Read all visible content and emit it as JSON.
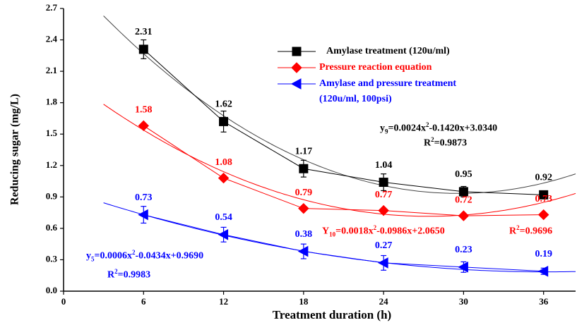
{
  "chart_data": {
    "type": "line",
    "x_label": "Treatment duration (h)",
    "y_label": "Reducing sugar (mg/L)",
    "x": [
      6,
      12,
      18,
      24,
      30,
      36
    ],
    "xlim": [
      0,
      38.4
    ],
    "ylim": [
      0,
      2.7
    ],
    "xticks": [
      0,
      6,
      12,
      18,
      24,
      30,
      36
    ],
    "yticks": [
      {
        "value": 0,
        "label": "0.0"
      },
      {
        "value": 0.3,
        "label": "0.3"
      },
      {
        "value": 0.6,
        "label": "0.6"
      },
      {
        "value": 0.9,
        "label": "0.9"
      },
      {
        "value": 1.2,
        "label": "1.2"
      },
      {
        "value": 1.5,
        "label": "1.5"
      },
      {
        "value": 1.8,
        "label": "1.8"
      },
      {
        "value": 2.1,
        "label": "2.1"
      },
      {
        "value": 2.4,
        "label": "2.4"
      },
      {
        "value": 2.7,
        "label": "2.7"
      }
    ],
    "series": [
      {
        "name": "Amylase treatment (120u/ml)",
        "color": "#000000",
        "marker": "square",
        "values": [
          2.31,
          1.62,
          1.17,
          1.04,
          0.95,
          0.92
        ],
        "errors": [
          0.09,
          0.1,
          0.08,
          0.08,
          0.05,
          0.03
        ],
        "fit": [
          0.0024,
          -0.142,
          3.034
        ]
      },
      {
        "name": "Pressure reaction equation",
        "color": "#ff0000",
        "marker": "diamond",
        "values": [
          1.58,
          1.08,
          0.79,
          0.77,
          0.72,
          0.73
        ],
        "fit": [
          0.0018,
          -0.0986,
          2.065
        ]
      },
      {
        "name": "Amylase and pressure treatment (120u/ml, 100psi)",
        "color": "#0000ff",
        "marker": "triangle-left",
        "values": [
          0.73,
          0.54,
          0.38,
          0.27,
          0.23,
          0.19
        ],
        "errors": [
          0.08,
          0.07,
          0.07,
          0.07,
          0.05,
          0.03
        ],
        "fit": [
          0.0006,
          -0.0434,
          0.969
        ]
      }
    ],
    "annotations": [
      {
        "color": "#000000",
        "parts": [
          {
            "text": "y"
          },
          {
            "sub": "9"
          },
          {
            "text": "=0.0024x"
          },
          {
            "sup": "2"
          },
          {
            "text": "-0.1420x+3.0340"
          }
        ]
      },
      {
        "color": "#000000",
        "parts": [
          {
            "text": "R"
          },
          {
            "sup": "2"
          },
          {
            "text": "=0.9873"
          }
        ]
      },
      {
        "color": "#ff0000",
        "parts": [
          {
            "text": "Y"
          },
          {
            "sub": "10"
          },
          {
            "text": "=0.0018x"
          },
          {
            "sup": "2"
          },
          {
            "text": "-0.0986x+2.0650"
          }
        ]
      },
      {
        "color": "#ff0000",
        "parts": [
          {
            "text": "R"
          },
          {
            "sup": "2"
          },
          {
            "text": "=0.9696"
          }
        ]
      },
      {
        "color": "#0000ff",
        "parts": [
          {
            "text": "y"
          },
          {
            "sub": "5"
          },
          {
            "text": "=0.0006x"
          },
          {
            "sup": "2"
          },
          {
            "text": "-0.0434x+0.9690"
          }
        ]
      },
      {
        "color": "#0000ff",
        "parts": [
          {
            "text": "R"
          },
          {
            "sup": "2"
          },
          {
            "text": "=0.9983"
          }
        ]
      }
    ]
  }
}
